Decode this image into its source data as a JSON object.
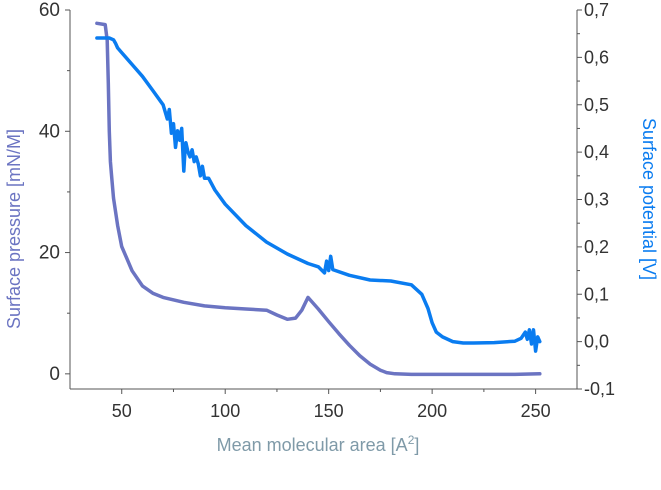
{
  "chart_data": {
    "type": "line",
    "xlabel": "Mean molecular area [A",
    "xlabel_sup": "2",
    "xlabel_end": "]",
    "ylabel": "Surface pressure [mN/M]",
    "y2label": "Surface potential [V]",
    "xlim": [
      25,
      270
    ],
    "ylim": [
      -2.5,
      60
    ],
    "y2lim": [
      -0.1,
      0.7
    ],
    "x_ticks": [
      {
        "value": 50,
        "label": "50"
      },
      {
        "value": 100,
        "label": "100"
      },
      {
        "value": 150,
        "label": "150"
      },
      {
        "value": 200,
        "label": "200"
      },
      {
        "value": 250,
        "label": "250"
      }
    ],
    "y_ticks": [
      {
        "value": 0,
        "label": "0"
      },
      {
        "value": 20,
        "label": "20"
      },
      {
        "value": 40,
        "label": "40"
      },
      {
        "value": 60,
        "label": "60"
      }
    ],
    "y2_ticks": [
      {
        "value": -0.1,
        "label": "-0,1"
      },
      {
        "value": 0.0,
        "label": "0,0"
      },
      {
        "value": 0.1,
        "label": "0,1"
      },
      {
        "value": 0.2,
        "label": "0,2"
      },
      {
        "value": 0.3,
        "label": "0,3"
      },
      {
        "value": 0.4,
        "label": "0,4"
      },
      {
        "value": 0.5,
        "label": "0,5"
      },
      {
        "value": 0.6,
        "label": "0,6"
      },
      {
        "value": 0.7,
        "label": "0,7"
      }
    ],
    "grid": false,
    "colors": {
      "pressure": "#6b74c2",
      "potential": "#0a7cf0",
      "axis": "#555555",
      "xlabel": "#7f9aa8"
    },
    "series": [
      {
        "axis": "left",
        "x": [
          38,
          42,
          43,
          43.5,
          44,
          44.5,
          45,
          46,
          48,
          50,
          55,
          60,
          65,
          70,
          80,
          90,
          100,
          110,
          120,
          125,
          130,
          134,
          137,
          140,
          145,
          150,
          155,
          160,
          165,
          170,
          175,
          178,
          182,
          190,
          200,
          210,
          220,
          230,
          240,
          252
        ],
        "y": [
          57.8,
          57.6,
          55,
          48,
          40,
          35,
          33,
          29,
          24.5,
          21,
          17,
          14.5,
          13.3,
          12.6,
          11.8,
          11.2,
          10.9,
          10.7,
          10.5,
          9.7,
          9.0,
          9.2,
          10.5,
          12.6,
          10.7,
          8.6,
          6.6,
          4.7,
          3.0,
          1.6,
          0.6,
          0.2,
          0.0,
          -0.1,
          -0.1,
          -0.1,
          -0.1,
          -0.1,
          -0.1,
          0.0
        ]
      },
      {
        "axis": "right",
        "x": [
          38,
          44,
          46,
          47,
          48,
          50,
          55,
          60,
          65,
          70,
          72,
          73,
          74,
          75,
          76,
          77,
          78,
          79,
          80,
          80.5,
          81,
          82,
          83,
          84,
          85,
          86,
          87,
          88,
          89,
          90,
          92,
          95,
          100,
          110,
          120,
          130,
          140,
          145,
          148,
          149,
          150,
          151,
          152,
          160,
          170,
          180,
          190,
          195,
          198,
          200,
          202,
          205,
          210,
          215,
          220,
          230,
          240,
          243,
          245,
          246,
          247,
          248,
          249,
          250,
          251,
          252
        ],
        "y": [
          0.641,
          0.641,
          0.637,
          0.63,
          0.62,
          0.61,
          0.585,
          0.56,
          0.53,
          0.5,
          0.47,
          0.49,
          0.44,
          0.46,
          0.41,
          0.445,
          0.425,
          0.45,
          0.36,
          0.4,
          0.42,
          0.4,
          0.39,
          0.405,
          0.38,
          0.39,
          0.375,
          0.35,
          0.37,
          0.345,
          0.345,
          0.32,
          0.29,
          0.245,
          0.21,
          0.185,
          0.165,
          0.158,
          0.145,
          0.17,
          0.15,
          0.18,
          0.152,
          0.14,
          0.13,
          0.128,
          0.12,
          0.1,
          0.07,
          0.04,
          0.02,
          0.01,
          0.0,
          -0.003,
          -0.003,
          -0.002,
          0.001,
          0.007,
          0.02,
          0.005,
          0.025,
          -0.005,
          0.025,
          -0.02,
          0.01,
          0.0
        ]
      }
    ]
  }
}
